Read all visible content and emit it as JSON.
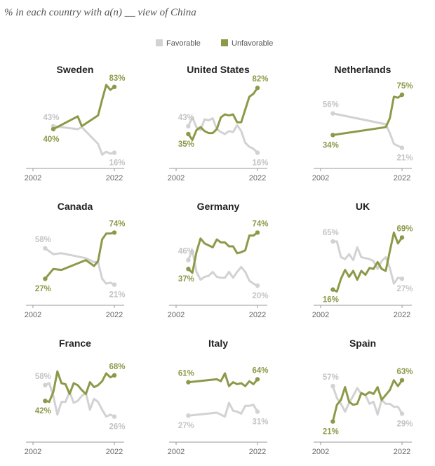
{
  "subtitle": "% in each country with a(n) __ view of China",
  "legend": [
    {
      "label": "Favorable",
      "color": "#d2d2d2"
    },
    {
      "label": "Unfavorable",
      "color": "#8b9a48"
    }
  ],
  "axis_tick_labels": [
    "2002",
    "2022"
  ],
  "chart_data": [
    {
      "type": "line",
      "title": "Sweden",
      "xlim": [
        2002,
        2022
      ],
      "ylim": [
        0,
        100
      ],
      "series": [
        {
          "name": "Favorable",
          "color": "#d2d2d2",
          "x": [
            2007,
            2013,
            2014,
            2018,
            2019,
            2020,
            2021,
            2022
          ],
          "y": [
            43,
            40,
            42,
            25,
            14,
            17,
            15,
            16
          ]
        },
        {
          "name": "Unfavorable",
          "color": "#8b9a48",
          "x": [
            2007,
            2013,
            2014,
            2018,
            2019,
            2020,
            2021,
            2022
          ],
          "y": [
            40,
            53,
            43,
            54,
            70,
            85,
            80,
            83
          ]
        }
      ],
      "labels": [
        {
          "text": "43%",
          "series": "Favorable",
          "year": 2007,
          "value": 43
        },
        {
          "text": "40%",
          "series": "Unfavorable",
          "year": 2007,
          "value": 40
        },
        {
          "text": "83%",
          "series": "Unfavorable",
          "year": 2022,
          "value": 83
        },
        {
          "text": "16%",
          "series": "Favorable",
          "year": 2022,
          "value": 16
        }
      ]
    },
    {
      "type": "line",
      "title": "United States",
      "xlim": [
        2002,
        2022
      ],
      "ylim": [
        0,
        100
      ],
      "series": [
        {
          "name": "Favorable",
          "color": "#d2d2d2",
          "x": [
            2005,
            2006,
            2007,
            2008,
            2009,
            2010,
            2011,
            2012,
            2013,
            2014,
            2015,
            2016,
            2017,
            2018,
            2019,
            2020,
            2021,
            2022
          ],
          "y": [
            43,
            52,
            42,
            39,
            50,
            49,
            51,
            40,
            37,
            35,
            38,
            37,
            44,
            38,
            26,
            22,
            20,
            16
          ]
        },
        {
          "name": "Unfavorable",
          "color": "#8b9a48",
          "x": [
            2005,
            2006,
            2007,
            2008,
            2009,
            2010,
            2011,
            2012,
            2013,
            2014,
            2015,
            2016,
            2017,
            2018,
            2019,
            2020,
            2021,
            2022
          ],
          "y": [
            35,
            29,
            39,
            42,
            38,
            36,
            36,
            40,
            52,
            55,
            54,
            55,
            47,
            47,
            60,
            73,
            76,
            82
          ]
        }
      ],
      "labels": [
        {
          "text": "43%",
          "series": "Favorable",
          "year": 2005,
          "value": 43
        },
        {
          "text": "35%",
          "series": "Unfavorable",
          "year": 2005,
          "value": 35
        },
        {
          "text": "82%",
          "series": "Unfavorable",
          "year": 2022,
          "value": 82
        },
        {
          "text": "16%",
          "series": "Favorable",
          "year": 2022,
          "value": 16
        }
      ]
    },
    {
      "type": "line",
      "title": "Netherlands",
      "xlim": [
        2002,
        2022
      ],
      "ylim": [
        0,
        100
      ],
      "series": [
        {
          "name": "Favorable",
          "color": "#d2d2d2",
          "x": [
            2005,
            2018,
            2019,
            2020,
            2021,
            2022
          ],
          "y": [
            56,
            45,
            36,
            25,
            23,
            21
          ]
        },
        {
          "name": "Unfavorable",
          "color": "#8b9a48",
          "x": [
            2005,
            2018,
            2019,
            2020,
            2021,
            2022
          ],
          "y": [
            34,
            42,
            51,
            73,
            72,
            75
          ]
        }
      ],
      "labels": [
        {
          "text": "56%",
          "series": "Favorable",
          "year": 2005,
          "value": 56
        },
        {
          "text": "34%",
          "series": "Unfavorable",
          "year": 2005,
          "value": 34
        },
        {
          "text": "75%",
          "series": "Unfavorable",
          "year": 2022,
          "value": 75
        },
        {
          "text": "21%",
          "series": "Favorable",
          "year": 2022,
          "value": 21
        }
      ]
    },
    {
      "type": "line",
      "title": "Canada",
      "xlim": [
        2002,
        2022
      ],
      "ylim": [
        0,
        100
      ],
      "series": [
        {
          "name": "Favorable",
          "color": "#d2d2d2",
          "x": [
            2005,
            2007,
            2009,
            2015,
            2017,
            2018,
            2019,
            2020,
            2021,
            2022
          ],
          "y": [
            58,
            52,
            53,
            48,
            44,
            44,
            27,
            22,
            23,
            21
          ]
        },
        {
          "name": "Unfavorable",
          "color": "#8b9a48",
          "x": [
            2005,
            2007,
            2009,
            2015,
            2017,
            2018,
            2019,
            2020,
            2021,
            2022
          ],
          "y": [
            27,
            37,
            36,
            46,
            40,
            45,
            67,
            73,
            73,
            74
          ]
        }
      ],
      "labels": [
        {
          "text": "58%",
          "series": "Favorable",
          "year": 2005,
          "value": 58
        },
        {
          "text": "27%",
          "series": "Unfavorable",
          "year": 2005,
          "value": 27
        },
        {
          "text": "74%",
          "series": "Unfavorable",
          "year": 2022,
          "value": 74
        },
        {
          "text": "21%",
          "series": "Favorable",
          "year": 2022,
          "value": 21
        }
      ]
    },
    {
      "type": "line",
      "title": "Germany",
      "xlim": [
        2002,
        2022
      ],
      "ylim": [
        0,
        100
      ],
      "series": [
        {
          "name": "Favorable",
          "color": "#d2d2d2",
          "x": [
            2005,
            2006,
            2007,
            2008,
            2009,
            2010,
            2011,
            2012,
            2013,
            2014,
            2015,
            2016,
            2017,
            2018,
            2019,
            2020,
            2021,
            2022
          ],
          "y": [
            46,
            56,
            34,
            26,
            29,
            30,
            34,
            29,
            28,
            28,
            34,
            28,
            34,
            39,
            34,
            25,
            22,
            20
          ]
        },
        {
          "name": "Unfavorable",
          "color": "#8b9a48",
          "x": [
            2005,
            2006,
            2007,
            2008,
            2009,
            2010,
            2011,
            2012,
            2013,
            2014,
            2015,
            2016,
            2017,
            2018,
            2019,
            2020,
            2021,
            2022
          ],
          "y": [
            37,
            33,
            54,
            68,
            63,
            61,
            59,
            67,
            64,
            64,
            60,
            60,
            53,
            54,
            56,
            71,
            71,
            74
          ]
        }
      ],
      "labels": [
        {
          "text": "46%",
          "series": "Favorable",
          "year": 2005,
          "value": 46
        },
        {
          "text": "37%",
          "series": "Unfavorable",
          "year": 2005,
          "value": 37
        },
        {
          "text": "74%",
          "series": "Unfavorable",
          "year": 2022,
          "value": 74
        },
        {
          "text": "20%",
          "series": "Favorable",
          "year": 2022,
          "value": 20
        }
      ]
    },
    {
      "type": "line",
      "title": "UK",
      "xlim": [
        2002,
        2022
      ],
      "ylim": [
        0,
        100
      ],
      "series": [
        {
          "name": "Favorable",
          "color": "#d2d2d2",
          "x": [
            2005,
            2006,
            2007,
            2008,
            2009,
            2010,
            2011,
            2012,
            2013,
            2014,
            2015,
            2016,
            2017,
            2018,
            2019,
            2020,
            2021,
            2022
          ],
          "y": [
            65,
            65,
            49,
            47,
            52,
            46,
            59,
            49,
            48,
            47,
            45,
            37,
            45,
            49,
            38,
            22,
            28,
            27
          ]
        },
        {
          "name": "Unfavorable",
          "color": "#8b9a48",
          "x": [
            2005,
            2006,
            2007,
            2008,
            2009,
            2010,
            2011,
            2012,
            2013,
            2014,
            2015,
            2016,
            2017,
            2018,
            2019,
            2020,
            2021,
            2022
          ],
          "y": [
            16,
            14,
            27,
            36,
            29,
            35,
            26,
            35,
            31,
            38,
            37,
            44,
            37,
            35,
            55,
            74,
            63,
            69
          ]
        }
      ],
      "labels": [
        {
          "text": "65%",
          "series": "Favorable",
          "year": 2005,
          "value": 65
        },
        {
          "text": "16%",
          "series": "Unfavorable",
          "year": 2005,
          "value": 16
        },
        {
          "text": "69%",
          "series": "Unfavorable",
          "year": 2022,
          "value": 69
        },
        {
          "text": "27%",
          "series": "Favorable",
          "year": 2022,
          "value": 27
        }
      ]
    },
    {
      "type": "line",
      "title": "France",
      "xlim": [
        2002,
        2022
      ],
      "ylim": [
        0,
        100
      ],
      "series": [
        {
          "name": "Favorable",
          "color": "#d2d2d2",
          "x": [
            2005,
            2006,
            2007,
            2008,
            2009,
            2010,
            2011,
            2012,
            2013,
            2014,
            2015,
            2016,
            2017,
            2018,
            2019,
            2020,
            2021,
            2022
          ],
          "y": [
            58,
            60,
            47,
            28,
            41,
            41,
            51,
            40,
            42,
            47,
            50,
            33,
            44,
            41,
            33,
            26,
            28,
            26
          ]
        },
        {
          "name": "Unfavorable",
          "color": "#8b9a48",
          "x": [
            2005,
            2006,
            2007,
            2008,
            2009,
            2010,
            2011,
            2012,
            2013,
            2014,
            2015,
            2016,
            2017,
            2018,
            2019,
            2020,
            2021,
            2022
          ],
          "y": [
            42,
            41,
            51,
            72,
            60,
            59,
            49,
            60,
            58,
            53,
            49,
            61,
            56,
            58,
            62,
            70,
            66,
            68
          ]
        }
      ],
      "labels": [
        {
          "text": "58%",
          "series": "Favorable",
          "year": 2005,
          "value": 58
        },
        {
          "text": "42%",
          "series": "Unfavorable",
          "year": 2005,
          "value": 42
        },
        {
          "text": "68%",
          "series": "Unfavorable",
          "year": 2022,
          "value": 68
        },
        {
          "text": "26%",
          "series": "Favorable",
          "year": 2022,
          "value": 26
        }
      ]
    },
    {
      "type": "line",
      "title": "Italy",
      "xlim": [
        2002,
        2022
      ],
      "ylim": [
        0,
        100
      ],
      "series": [
        {
          "name": "Favorable",
          "color": "#d2d2d2",
          "x": [
            2005,
            2012,
            2013,
            2014,
            2015,
            2016,
            2017,
            2018,
            2019,
            2020,
            2021,
            2022
          ],
          "y": [
            27,
            30,
            28,
            26,
            40,
            32,
            31,
            29,
            37,
            37,
            38,
            31
          ]
        },
        {
          "name": "Unfavorable",
          "color": "#8b9a48",
          "x": [
            2005,
            2012,
            2013,
            2014,
            2015,
            2016,
            2017,
            2018,
            2019,
            2020,
            2021,
            2022
          ],
          "y": [
            61,
            64,
            62,
            70,
            57,
            61,
            59,
            60,
            57,
            62,
            59,
            64
          ]
        }
      ],
      "labels": [
        {
          "text": "61%",
          "series": "Unfavorable",
          "year": 2005,
          "value": 61
        },
        {
          "text": "27%",
          "series": "Favorable",
          "year": 2005,
          "value": 27
        },
        {
          "text": "64%",
          "series": "Unfavorable",
          "year": 2022,
          "value": 64
        },
        {
          "text": "31%",
          "series": "Favorable",
          "year": 2022,
          "value": 31
        }
      ]
    },
    {
      "type": "line",
      "title": "Spain",
      "xlim": [
        2002,
        2022
      ],
      "ylim": [
        0,
        100
      ],
      "series": [
        {
          "name": "Favorable",
          "color": "#d2d2d2",
          "x": [
            2005,
            2006,
            2007,
            2008,
            2009,
            2010,
            2011,
            2012,
            2013,
            2014,
            2015,
            2016,
            2017,
            2018,
            2019,
            2020,
            2021,
            2022
          ],
          "y": [
            57,
            45,
            39,
            31,
            40,
            47,
            55,
            49,
            48,
            39,
            41,
            28,
            43,
            39,
            39,
            36,
            36,
            29
          ]
        },
        {
          "name": "Unfavorable",
          "color": "#8b9a48",
          "x": [
            2005,
            2006,
            2007,
            2008,
            2009,
            2010,
            2011,
            2012,
            2013,
            2014,
            2015,
            2016,
            2017,
            2018,
            2019,
            2020,
            2021,
            2022
          ],
          "y": [
            21,
            38,
            43,
            56,
            41,
            38,
            39,
            50,
            48,
            51,
            49,
            56,
            43,
            48,
            53,
            63,
            57,
            63
          ]
        }
      ],
      "labels": [
        {
          "text": "57%",
          "series": "Favorable",
          "year": 2005,
          "value": 57
        },
        {
          "text": "21%",
          "series": "Unfavorable",
          "year": 2005,
          "value": 21
        },
        {
          "text": "63%",
          "series": "Unfavorable",
          "year": 2022,
          "value": 63
        },
        {
          "text": "29%",
          "series": "Favorable",
          "year": 2022,
          "value": 29
        }
      ]
    }
  ]
}
